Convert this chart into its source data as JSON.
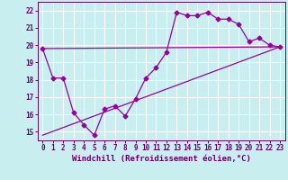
{
  "xlabel": "Windchill (Refroidissement éolien,°C)",
  "background_color": "#c8eef0",
  "line_color": "#990099",
  "grid_color": "#ffffff",
  "xlim": [
    -0.5,
    23.5
  ],
  "ylim": [
    14.5,
    22.5
  ],
  "xticks": [
    0,
    1,
    2,
    3,
    4,
    5,
    6,
    7,
    8,
    9,
    10,
    11,
    12,
    13,
    14,
    15,
    16,
    17,
    18,
    19,
    20,
    21,
    22,
    23
  ],
  "yticks": [
    15,
    16,
    17,
    18,
    19,
    20,
    21,
    22
  ],
  "hours": [
    0,
    1,
    2,
    3,
    4,
    5,
    6,
    7,
    8,
    9,
    10,
    11,
    12,
    13,
    14,
    15,
    16,
    17,
    18,
    19,
    20,
    21,
    22,
    23
  ],
  "temp": [
    19.8,
    18.1,
    18.1,
    16.1,
    15.4,
    14.8,
    16.3,
    16.5,
    15.9,
    16.9,
    18.1,
    18.7,
    19.6,
    21.9,
    21.7,
    21.7,
    21.9,
    21.5,
    21.5,
    21.2,
    20.2,
    20.4,
    20.0,
    19.9
  ],
  "line1_x": [
    0,
    23
  ],
  "line1_y": [
    19.8,
    19.9
  ],
  "line2_x": [
    0,
    23
  ],
  "line2_y": [
    14.8,
    19.9
  ],
  "font_family": "monospace",
  "tick_fontsize": 5.5,
  "xlabel_fontsize": 6.5,
  "markersize": 2.5,
  "linewidth": 0.9
}
